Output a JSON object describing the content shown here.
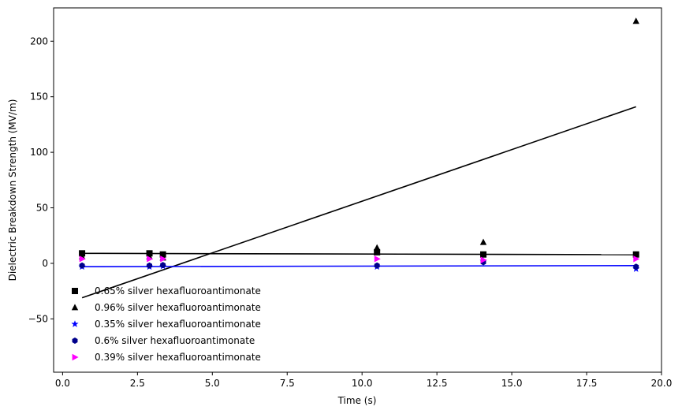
{
  "chart_data": {
    "type": "scatter",
    "title": "",
    "xlabel": "Time (s)",
    "ylabel": "Dielectric Breakdown Strength (MV/m)",
    "xlim": [
      -0.3,
      20.0
    ],
    "ylim": [
      -98,
      230
    ],
    "xticks": [
      0.0,
      2.5,
      5.0,
      7.5,
      10.0,
      12.5,
      15.0,
      17.5,
      20.0
    ],
    "xtick_labels": [
      "0.0",
      "2.5",
      "5.0",
      "7.5",
      "10.0",
      "12.5",
      "15.0",
      "17.5",
      "20.0"
    ],
    "yticks": [
      -50,
      0,
      50,
      100,
      150,
      200
    ],
    "ytick_labels": [
      "−50",
      "0",
      "50",
      "100",
      "150",
      "200"
    ],
    "grid": false,
    "legend_position": "lower-left",
    "series": [
      {
        "name": "0.65% silver hexafluoroantimonate",
        "marker": "square",
        "color": "#000000",
        "x": [
          0.65,
          2.9,
          3.35,
          10.5,
          14.05,
          19.15
        ],
        "y": [
          9,
          9,
          8,
          10,
          8,
          8
        ],
        "fit": {
          "x": [
            0.65,
            19.15
          ],
          "y": [
            9,
            7.8
          ],
          "color": "#000000"
        }
      },
      {
        "name": "0.96% silver hexafluoroantimonate",
        "marker": "triangle",
        "color": "#000000",
        "x": [
          0.65,
          2.9,
          3.35,
          10.5,
          14.05,
          19.15
        ],
        "y": [
          6,
          6,
          5,
          14,
          19,
          218
        ],
        "fit": {
          "x": [
            0.65,
            19.15
          ],
          "y": [
            -31,
            141
          ],
          "color": "#000000"
        }
      },
      {
        "name": "0.35% silver hexafluoroantimonate",
        "marker": "star",
        "color": "#0000ff",
        "x": [
          0.65,
          2.9,
          3.35,
          10.5,
          14.05,
          19.15
        ],
        "y": [
          -3,
          -3,
          -2.5,
          -3,
          2,
          -5
        ],
        "fit": {
          "x": [
            0.65,
            19.15
          ],
          "y": [
            -3,
            -2
          ],
          "color": "#0000ff"
        }
      },
      {
        "name": "0.6% silver hexafluoroantimonate",
        "marker": "hexagon",
        "color": "#00008b",
        "x": [
          0.65,
          2.9,
          3.35,
          10.5,
          14.05,
          19.15
        ],
        "y": [
          -2,
          -2,
          -1.5,
          -2,
          1,
          -3
        ],
        "fit": null
      },
      {
        "name": "0.39% silver hexafluoroantimonate",
        "marker": "triangle-right",
        "color": "#ff00ff",
        "x": [
          0.65,
          2.9,
          3.35,
          10.5,
          14.05,
          19.15
        ],
        "y": [
          4,
          4,
          4,
          4,
          3,
          4
        ],
        "fit": null
      }
    ]
  }
}
